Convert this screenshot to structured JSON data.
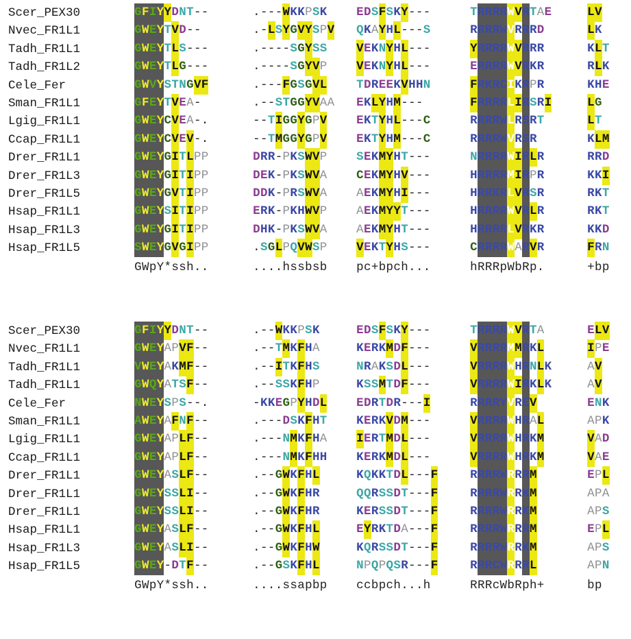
{
  "blocks": [
    {
      "rows": [
        {
          "name": "Scer_PEX30",
          "segs": [
            "GFIYYDNT--",
            ".---WKKPSK",
            "EDSFSKY---",
            "TRRRRWVRTAE",
            "LV"
          ]
        },
        {
          "name": "Nvec_FR1L1",
          "segs": [
            "GWEYTVD--",
            ".-LSYGVYSPV",
            "QKAYHL---S",
            "RRRRWVRRRD",
            "LK"
          ]
        },
        {
          "name": "Tadh_FR1L1",
          "segs": [
            "GWEYTLS---",
            ".----SGYSS",
            "VEKNYHL---",
            "YRRRRWVRRR",
            "KLT"
          ]
        },
        {
          "name": "Tadh_FR1L2",
          "segs": [
            "GWEYTLG---",
            ".----SGYVP",
            "VEKNYHL---",
            "ERRRRWVRKR",
            "RLK"
          ]
        },
        {
          "name": "Cele_Fer",
          "segs": [
            "GWVYSTNGVF",
            ".---FGSGVL",
            "TDREEKVHHN",
            "FRKRCIKRPR",
            "KHE"
          ]
        },
        {
          "name": "Sman_FR1L1",
          "segs": [
            "GFEYTVEA-",
            ".--STGGYVAA",
            "EKLYHM---",
            "FRRRRLIRSRI",
            "LG"
          ]
        },
        {
          "name": "Lgig_FR1L1",
          "segs": [
            "GWEYCVEA-.",
            "--TIGGYGPV",
            "EKTYHL---C",
            "RRRRWLRSRT",
            "LT"
          ]
        },
        {
          "name": "Ccap_FR1L1",
          "segs": [
            "GWEYCVEV-.",
            "--TMGGYGPV",
            "EKTYHM---C",
            "RRRRWVRSR",
            "KLM"
          ]
        },
        {
          "name": "Drer_FR1L1",
          "segs": [
            "GWEYGITLPP",
            "DRR-PKSWVP",
            "SEKMYHT---",
            "NRRRRWIRLR",
            "RRD"
          ]
        },
        {
          "name": "Drer_FR1L3",
          "segs": [
            "GWEYGITIPP",
            "DEK-PKSWVA",
            "CEKMYHV---",
            "HRRRRMIRPR",
            "KKI"
          ]
        },
        {
          "name": "Drer_FR1L5",
          "segs": [
            "GWEYGVTIPP",
            "DDK-PRSWVA",
            "AEKMYHI---",
            "HRRKRLVRSR",
            "RKT"
          ]
        },
        {
          "name": "Hsap_FR1L1",
          "segs": [
            "GWEYSITIPP",
            "ERK-PKHWVP",
            "AEKMYYT---",
            "HRRRRWVRLR",
            "RKT"
          ]
        },
        {
          "name": "Hsap_FR1L3",
          "segs": [
            "GWEYGITIPP",
            "DHK-PKSWVA",
            "AEKMYHT---",
            "HRRRRLVRKR",
            "KKD"
          ]
        },
        {
          "name": "Hsap_FR1L5",
          "segs": [
            "SWEYGVGIPP",
            ".SGLPQVWSP",
            "VEKTYHS---",
            "CRRRRWARVR",
            "FRN"
          ]
        }
      ],
      "consensus": [
        "GWpY*ssh..",
        "....hssbsb",
        "pc+bpch...",
        "hRRRpWbRp.",
        "+bp"
      ]
    },
    {
      "rows": [
        {
          "name": "Scer_PEX30",
          "segs": [
            "GFIYYDNT--",
            ".--WKKPSK",
            "EDSFSKY---",
            "TRRRRWVRTA",
            "ELV"
          ]
        },
        {
          "name": "Nvec_FR1L1",
          "segs": [
            "GWEYAPVF--",
            ".--TMKFHA",
            "KERKMDF---",
            "VRRRRMMRKL",
            "IPE"
          ]
        },
        {
          "name": "Tadh_FR1L1",
          "segs": [
            "VWEYAKMF--",
            ".--ITKFHS",
            "NRAKSDL---",
            "VRRRRWHRNLK",
            "AV"
          ]
        },
        {
          "name": "Tadh_FR1L1",
          "segs": [
            "GWQYATSF--",
            ".--SSKFHP",
            "KSSMTDF---",
            "VRRRRWIRKLK",
            "AV"
          ]
        },
        {
          "name": "Cele_Fer",
          "segs": [
            "NWEYSPS--.",
            "-KKEGPYHDL",
            "EDRTDR---I",
            "RRRRYVREV",
            "ENK"
          ]
        },
        {
          "name": "Sman_FR1L1",
          "segs": [
            "AWEYAFNF--",
            ".---DSKFHT",
            "KERKVDM---",
            "VRRRRWHRAL",
            "APK"
          ]
        },
        {
          "name": "Lgig_FR1L1",
          "segs": [
            "GWEYAPLF--",
            ".---NMKFHA",
            "IERTMDL---",
            "VRRRRWHRKM",
            "VAD"
          ]
        },
        {
          "name": "Ccap_FR1L1",
          "segs": [
            "GWEYAPLF--",
            ".---NMKFHH",
            "KERKMDL---",
            "VRRRRWHRKM",
            "VAE"
          ]
        },
        {
          "name": "Drer_FR1L1",
          "segs": [
            "GWEYASLF--",
            ".--GWKFHL",
            "KQKKTDL---F",
            "RRRRWRRRM",
            "EPL"
          ]
        },
        {
          "name": "Drer_FR1L1",
          "segs": [
            "GWEYSSLI--",
            ".--GWKFHR",
            "QQRSSDT---F",
            "RRRRWRRKM",
            "APA"
          ]
        },
        {
          "name": "Drer_FR1L1",
          "segs": [
            "GWEYSSLI--",
            ".--GWKFHR",
            "KERSSDT---F",
            "RRRRWRRKM",
            "APS"
          ]
        },
        {
          "name": "Hsap_FR1L1",
          "segs": [
            "GWEYASLF--",
            ".--GWKFHL",
            "EYRKTDA---F",
            "RRRRWRRRM",
            "EPL"
          ]
        },
        {
          "name": "Hsap_FR1L3",
          "segs": [
            "GWEYASLI--",
            ".--GWKFHW",
            "KQRSSDT---F",
            "RRRRWRRKM",
            "APS"
          ]
        },
        {
          "name": "Hsap_FR1L5",
          "segs": [
            "GWEY-DTF--",
            ".--GSKFHL",
            "NPQPQSR---F",
            "RRRCWRRRL",
            "APN"
          ]
        }
      ],
      "consensus": [
        "GWpY*ssh..",
        "....ssapbp",
        "ccbpch...h",
        "RRRcWbRph+",
        "bp"
      ]
    }
  ],
  "style": {
    "dark_box": "#575757",
    "yellow_box": "#ebe813",
    "pale_yellow_box": "#f8f3a0",
    "green_text": "#2f5f14",
    "blue_text": "#3a48a6",
    "purple_text": "#8c3c91",
    "teal_text": "#3aa7a6"
  }
}
